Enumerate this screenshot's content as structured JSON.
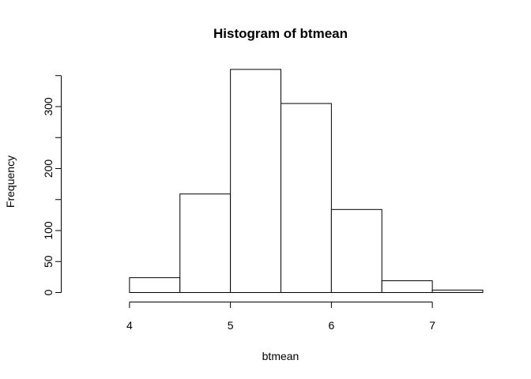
{
  "chart_data": {
    "type": "bar",
    "title": "Histogram of btmean",
    "xlabel": "btmean",
    "ylabel": "Frequency",
    "bins": [
      {
        "start": 3.5,
        "end": 4.0,
        "count": 0
      },
      {
        "start": 4.0,
        "end": 4.5,
        "count": 24
      },
      {
        "start": 4.5,
        "end": 5.0,
        "count": 159
      },
      {
        "start": 5.0,
        "end": 5.5,
        "count": 360
      },
      {
        "start": 5.5,
        "end": 6.0,
        "count": 305
      },
      {
        "start": 6.0,
        "end": 6.5,
        "count": 134
      },
      {
        "start": 6.5,
        "end": 7.0,
        "count": 19
      },
      {
        "start": 7.0,
        "end": 7.5,
        "count": 4
      }
    ],
    "x_ticks": [
      "4",
      "5",
      "6",
      "7"
    ],
    "y_ticks": [
      "0",
      "50",
      "100",
      "200",
      "300"
    ],
    "xlim": [
      3.5,
      7.5
    ],
    "ylim": [
      0,
      360
    ],
    "grid": false,
    "colors": {
      "bar_fill": "#ffffff",
      "bar_stroke": "#000000"
    }
  }
}
